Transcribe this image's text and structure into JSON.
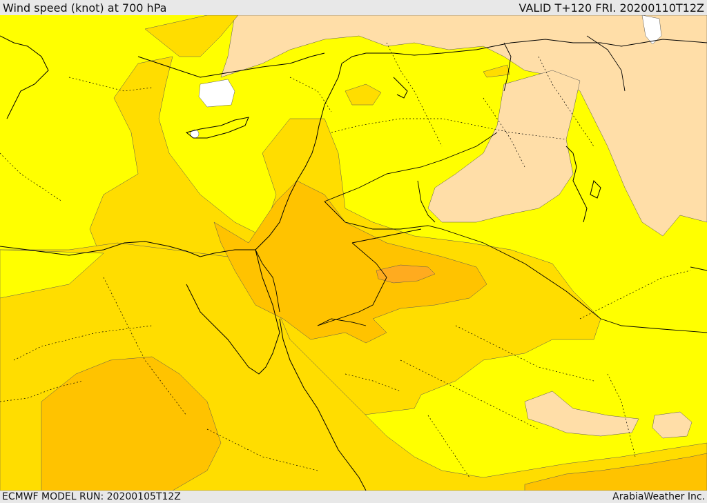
{
  "header": {
    "title": "Wind speed (knot) at 700 hPa",
    "valid": "VALID T+120 FRI. 20200110T12Z"
  },
  "footer": {
    "model_run": "ECMWF MODEL RUN: 20200105T12Z",
    "credit": "ArabiaWeather Inc."
  },
  "map": {
    "variable": "wind speed at 700 hPa",
    "colors": {
      "sea_background": "#ffff00",
      "tan_calm": "#ffdea8",
      "yellow_light": "#ffff00",
      "gold_moderate": "#ffdd00",
      "amber_strong": "#ffc300",
      "orange_stronger": "#ffab1f",
      "missing": "#ffffff",
      "borders": "#000000"
    }
  }
}
